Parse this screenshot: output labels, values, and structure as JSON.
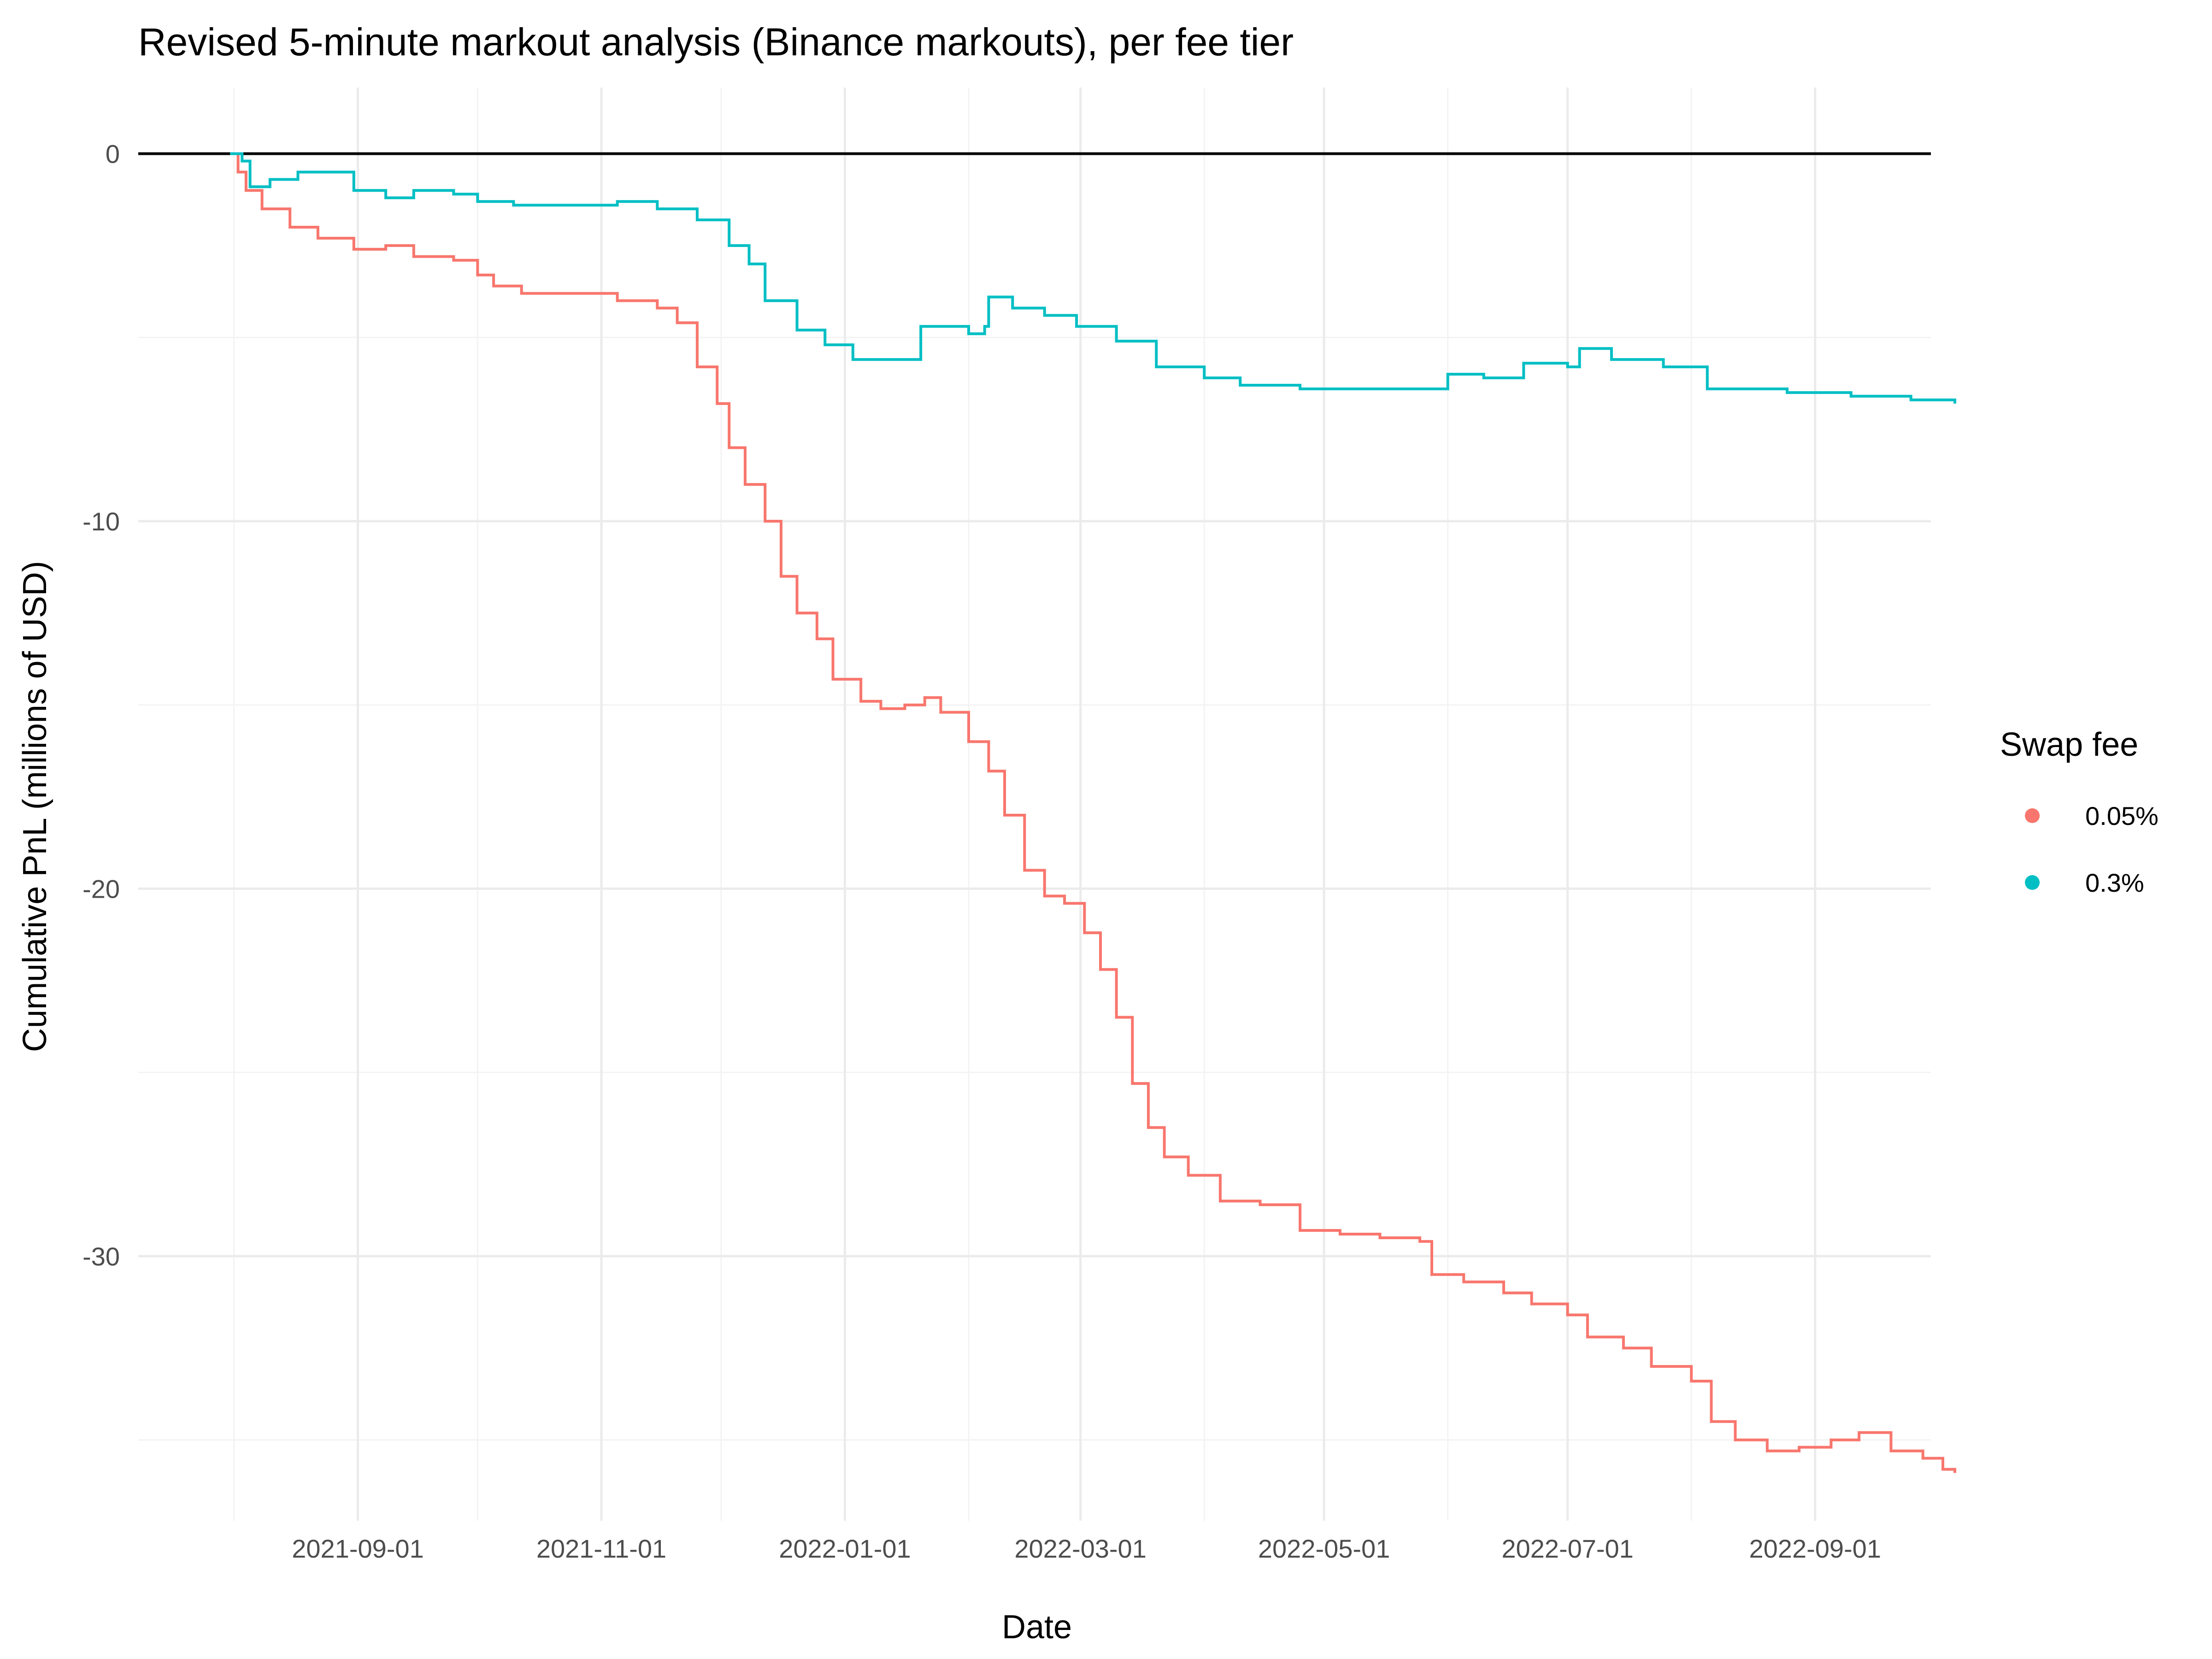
{
  "chart_data": {
    "type": "line",
    "title": "Revised 5-minute markout analysis (Binance markouts), per fee tier",
    "xlabel": "Date",
    "ylabel": "Cumulative PnL (millions of USD)",
    "x_ticks": [
      "2021-09-01",
      "2021-11-01",
      "2022-01-01",
      "2022-03-01",
      "2022-05-01",
      "2022-07-01",
      "2022-09-01"
    ],
    "y_ticks": [
      0,
      -10,
      -20,
      -30
    ],
    "xlim": [
      "2021-07-08",
      "2022-09-30"
    ],
    "ylim": [
      -37.2,
      1.8
    ],
    "grid": true,
    "hline": 0,
    "legend": {
      "title": "Swap fee",
      "position": "right",
      "entries": [
        {
          "label": "0.05%",
          "color": "#F8766D"
        },
        {
          "label": "0.3%",
          "color": "#00BFC4"
        }
      ]
    },
    "series": [
      {
        "name": "0.05%",
        "color": "#F8766D",
        "points": [
          [
            "2021-07-31",
            0.0
          ],
          [
            "2021-08-02",
            -0.5
          ],
          [
            "2021-08-04",
            -1.0
          ],
          [
            "2021-08-08",
            -1.5
          ],
          [
            "2021-08-15",
            -2.0
          ],
          [
            "2021-08-22",
            -2.3
          ],
          [
            "2021-08-31",
            -2.6
          ],
          [
            "2021-09-05",
            -2.6
          ],
          [
            "2021-09-08",
            -2.5
          ],
          [
            "2021-09-15",
            -2.8
          ],
          [
            "2021-09-25",
            -2.9
          ],
          [
            "2021-10-01",
            -3.3
          ],
          [
            "2021-10-05",
            -3.6
          ],
          [
            "2021-10-12",
            -3.8
          ],
          [
            "2021-10-25",
            -3.8
          ],
          [
            "2021-11-05",
            -4.0
          ],
          [
            "2021-11-15",
            -4.2
          ],
          [
            "2021-11-20",
            -4.6
          ],
          [
            "2021-11-25",
            -5.8
          ],
          [
            "2021-11-30",
            -6.8
          ],
          [
            "2021-12-03",
            -8.0
          ],
          [
            "2021-12-07",
            -9.0
          ],
          [
            "2021-12-12",
            -10.0
          ],
          [
            "2021-12-16",
            -11.5
          ],
          [
            "2021-12-20",
            -12.5
          ],
          [
            "2021-12-25",
            -13.2
          ],
          [
            "2021-12-29",
            -14.3
          ],
          [
            "2022-01-05",
            -14.9
          ],
          [
            "2022-01-10",
            -15.1
          ],
          [
            "2022-01-16",
            -15.0
          ],
          [
            "2022-01-21",
            -14.8
          ],
          [
            "2022-01-25",
            -15.2
          ],
          [
            "2022-02-01",
            -16.0
          ],
          [
            "2022-02-06",
            -16.8
          ],
          [
            "2022-02-10",
            -18.0
          ],
          [
            "2022-02-15",
            -19.5
          ],
          [
            "2022-02-20",
            -20.2
          ],
          [
            "2022-02-25",
            -20.4
          ],
          [
            "2022-03-02",
            -21.2
          ],
          [
            "2022-03-06",
            -22.2
          ],
          [
            "2022-03-10",
            -23.5
          ],
          [
            "2022-03-14",
            -25.3
          ],
          [
            "2022-03-18",
            -26.5
          ],
          [
            "2022-03-22",
            -27.3
          ],
          [
            "2022-03-28",
            -27.8
          ],
          [
            "2022-04-05",
            -28.5
          ],
          [
            "2022-04-15",
            -28.6
          ],
          [
            "2022-04-25",
            -29.3
          ],
          [
            "2022-05-05",
            -29.4
          ],
          [
            "2022-05-15",
            -29.5
          ],
          [
            "2022-05-25",
            -29.6
          ],
          [
            "2022-05-28",
            -30.5
          ],
          [
            "2022-06-05",
            -30.7
          ],
          [
            "2022-06-15",
            -31.0
          ],
          [
            "2022-06-22",
            -31.3
          ],
          [
            "2022-07-01",
            -31.6
          ],
          [
            "2022-07-06",
            -32.2
          ],
          [
            "2022-07-15",
            -32.5
          ],
          [
            "2022-07-22",
            -33.0
          ],
          [
            "2022-08-01",
            -33.4
          ],
          [
            "2022-08-06",
            -34.5
          ],
          [
            "2022-08-12",
            -35.0
          ],
          [
            "2022-08-20",
            -35.3
          ],
          [
            "2022-08-28",
            -35.2
          ],
          [
            "2022-09-05",
            -35.0
          ],
          [
            "2022-09-12",
            -34.8
          ],
          [
            "2022-09-20",
            -35.3
          ],
          [
            "2022-09-28",
            -35.5
          ],
          [
            "2022-10-03",
            -35.8
          ],
          [
            "2022-10-06",
            -35.9
          ]
        ]
      },
      {
        "name": "0.3%",
        "color": "#00BFC4",
        "points": [
          [
            "2021-07-31",
            0.0
          ],
          [
            "2021-08-03",
            -0.2
          ],
          [
            "2021-08-05",
            -0.9
          ],
          [
            "2021-08-10",
            -0.7
          ],
          [
            "2021-08-17",
            -0.5
          ],
          [
            "2021-08-24",
            -0.5
          ],
          [
            "2021-08-31",
            -1.0
          ],
          [
            "2021-09-08",
            -1.2
          ],
          [
            "2021-09-15",
            -1.0
          ],
          [
            "2021-09-25",
            -1.1
          ],
          [
            "2021-10-01",
            -1.3
          ],
          [
            "2021-10-10",
            -1.4
          ],
          [
            "2021-10-20",
            -1.4
          ],
          [
            "2021-11-05",
            -1.3
          ],
          [
            "2021-11-15",
            -1.5
          ],
          [
            "2021-11-25",
            -1.8
          ],
          [
            "2021-12-03",
            -2.5
          ],
          [
            "2021-12-08",
            -3.0
          ],
          [
            "2021-12-12",
            -4.0
          ],
          [
            "2021-12-20",
            -4.8
          ],
          [
            "2021-12-27",
            -5.2
          ],
          [
            "2022-01-03",
            -5.6
          ],
          [
            "2022-01-15",
            -5.6
          ],
          [
            "2022-01-20",
            -4.7
          ],
          [
            "2022-02-01",
            -4.9
          ],
          [
            "2022-02-05",
            -4.7
          ],
          [
            "2022-02-06",
            -3.9
          ],
          [
            "2022-02-12",
            -4.2
          ],
          [
            "2022-02-20",
            -4.4
          ],
          [
            "2022-02-28",
            -4.7
          ],
          [
            "2022-03-10",
            -5.1
          ],
          [
            "2022-03-20",
            -5.8
          ],
          [
            "2022-04-01",
            -6.1
          ],
          [
            "2022-04-10",
            -6.3
          ],
          [
            "2022-04-25",
            -6.4
          ],
          [
            "2022-05-10",
            -6.4
          ],
          [
            "2022-05-25",
            -6.4
          ],
          [
            "2022-06-01",
            -6.0
          ],
          [
            "2022-06-10",
            -6.1
          ],
          [
            "2022-06-20",
            -5.7
          ],
          [
            "2022-07-01",
            -5.8
          ],
          [
            "2022-07-04",
            -5.3
          ],
          [
            "2022-07-12",
            -5.6
          ],
          [
            "2022-07-25",
            -5.8
          ],
          [
            "2022-08-05",
            -6.4
          ],
          [
            "2022-08-15",
            -6.4
          ],
          [
            "2022-08-25",
            -6.5
          ],
          [
            "2022-09-10",
            -6.6
          ],
          [
            "2022-09-25",
            -6.7
          ],
          [
            "2022-10-06",
            -6.8
          ]
        ]
      }
    ]
  }
}
